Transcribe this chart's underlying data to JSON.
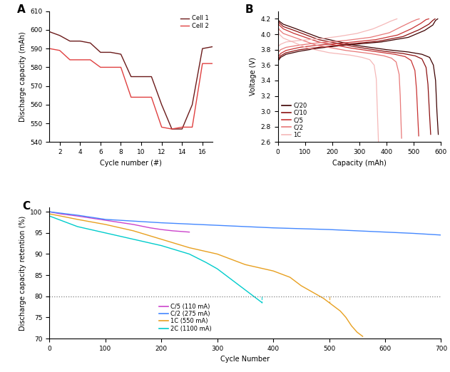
{
  "panel_A": {
    "label": "A",
    "ylabel": "Discharge capacity (mAh)",
    "xlabel": "Cycle number (#)",
    "ylim": [
      540,
      610
    ],
    "xlim": [
      1,
      17
    ],
    "xticks": [
      2,
      4,
      6,
      8,
      10,
      12,
      14,
      16
    ],
    "yticks": [
      540,
      550,
      560,
      570,
      580,
      590,
      600,
      610
    ],
    "cell1_color": "#6B1A1A",
    "cell2_color": "#E04040",
    "cell1_x": [
      1,
      2,
      3,
      4,
      5,
      6,
      7,
      8,
      9,
      10,
      11,
      12,
      13,
      14,
      15,
      16,
      17
    ],
    "cell1_y": [
      599,
      597,
      594,
      594,
      593,
      588,
      588,
      587,
      575,
      575,
      575,
      560,
      547,
      547,
      560,
      590,
      591
    ],
    "cell2_x": [
      1,
      2,
      3,
      4,
      5,
      6,
      7,
      8,
      9,
      10,
      11,
      12,
      13,
      14,
      15,
      16,
      17
    ],
    "cell2_y": [
      590,
      589,
      584,
      584,
      584,
      580,
      580,
      580,
      564,
      564,
      564,
      548,
      547,
      548,
      548,
      582,
      582
    ]
  },
  "panel_B": {
    "label": "B",
    "ylabel": "Voltage (V)",
    "xlabel": "Capacity (mAh)",
    "ylim": [
      2.6,
      4.3
    ],
    "xlim": [
      0,
      600
    ],
    "yticks": [
      2.6,
      2.8,
      3.0,
      3.2,
      3.4,
      3.6,
      3.8,
      4.0,
      4.2
    ],
    "xticks": [
      0,
      100,
      200,
      300,
      400,
      500,
      600
    ],
    "rates": [
      "C/20",
      "C/10",
      "C/5",
      "C/2",
      "1C"
    ],
    "colors": [
      "#3D0000",
      "#8B1010",
      "#C83232",
      "#E87878",
      "#F5B8B8"
    ],
    "charge_curves": {
      "C20": {
        "x": [
          0,
          10,
          30,
          80,
          150,
          250,
          380,
          480,
          540,
          570,
          580,
          588
        ],
        "y": [
          3.65,
          3.7,
          3.74,
          3.78,
          3.82,
          3.86,
          3.9,
          3.96,
          4.05,
          4.12,
          4.18,
          4.2
        ]
      },
      "C10": {
        "x": [
          0,
          10,
          30,
          80,
          150,
          250,
          370,
          460,
          520,
          555,
          570,
          578
        ],
        "y": [
          3.67,
          3.72,
          3.76,
          3.8,
          3.83,
          3.87,
          3.91,
          3.97,
          4.06,
          4.13,
          4.18,
          4.2
        ]
      },
      "C5": {
        "x": [
          0,
          10,
          30,
          80,
          150,
          250,
          360,
          440,
          490,
          525,
          545,
          555
        ],
        "y": [
          3.7,
          3.75,
          3.79,
          3.83,
          3.86,
          3.89,
          3.93,
          3.99,
          4.07,
          4.14,
          4.19,
          4.2
        ]
      },
      "C2": {
        "x": [
          0,
          10,
          30,
          80,
          150,
          250,
          340,
          410,
          455,
          490,
          510,
          520
        ],
        "y": [
          3.76,
          3.8,
          3.83,
          3.86,
          3.89,
          3.92,
          3.96,
          4.02,
          4.1,
          4.16,
          4.19,
          4.2
        ]
      },
      "C1": {
        "x": [
          0,
          10,
          30,
          80,
          150,
          220,
          290,
          350,
          390,
          415,
          430,
          438
        ],
        "y": [
          3.84,
          3.87,
          3.9,
          3.92,
          3.94,
          3.97,
          4.01,
          4.07,
          4.13,
          4.17,
          4.19,
          4.2
        ]
      }
    },
    "discharge_curves": {
      "C20": {
        "x": [
          0,
          5,
          20,
          60,
          150,
          280,
          400,
          480,
          530,
          558,
          572,
          580,
          585,
          590
        ],
        "y": [
          4.19,
          4.17,
          4.13,
          4.08,
          3.96,
          3.86,
          3.8,
          3.77,
          3.74,
          3.7,
          3.6,
          3.4,
          3.0,
          2.7
        ]
      },
      "C10": {
        "x": [
          0,
          5,
          20,
          60,
          150,
          280,
          390,
          460,
          505,
          530,
          545,
          552,
          558,
          562
        ],
        "y": [
          4.18,
          4.15,
          4.1,
          4.05,
          3.93,
          3.84,
          3.78,
          3.75,
          3.72,
          3.68,
          3.57,
          3.35,
          2.95,
          2.7
        ]
      },
      "C5": {
        "x": [
          0,
          5,
          20,
          60,
          150,
          270,
          370,
          430,
          468,
          490,
          504,
          510,
          515,
          518
        ],
        "y": [
          4.15,
          4.12,
          4.07,
          4.01,
          3.9,
          3.82,
          3.77,
          3.74,
          3.71,
          3.66,
          3.53,
          3.28,
          2.9,
          2.68
        ]
      },
      "C2": {
        "x": [
          0,
          5,
          20,
          60,
          140,
          250,
          340,
          390,
          418,
          435,
          446,
          450,
          453,
          455
        ],
        "y": [
          4.1,
          4.06,
          4.01,
          3.96,
          3.86,
          3.79,
          3.75,
          3.72,
          3.69,
          3.64,
          3.48,
          3.2,
          2.85,
          2.65
        ]
      },
      "C1": {
        "x": [
          0,
          5,
          20,
          55,
          110,
          190,
          265,
          310,
          338,
          354,
          362,
          365,
          368,
          370
        ],
        "y": [
          4.05,
          4.0,
          3.95,
          3.9,
          3.82,
          3.76,
          3.73,
          3.7,
          3.67,
          3.6,
          3.42,
          3.1,
          2.8,
          2.6
        ]
      }
    }
  },
  "panel_C": {
    "label": "C",
    "ylabel": "Discharge capacity retention (%)",
    "xlabel": "Cycle Number",
    "ylim": [
      70,
      101
    ],
    "xlim": [
      0,
      700
    ],
    "yticks": [
      70,
      75,
      80,
      85,
      90,
      95,
      100
    ],
    "xticks": [
      0,
      100,
      200,
      300,
      400,
      500,
      600,
      700
    ],
    "hline_y": 80,
    "vline_2C_x": 380,
    "vline_1C_x": 500,
    "series": {
      "C5_110mA": {
        "label": "C/5 (110 mA)",
        "color": "#CC44CC",
        "x": [
          0,
          20,
          50,
          100,
          150,
          180,
          200,
          220,
          240,
          250
        ],
        "y": [
          100,
          99.5,
          99.0,
          98.0,
          97.0,
          96.2,
          95.8,
          95.5,
          95.3,
          95.2
        ]
      },
      "C2_275mA": {
        "label": "C/2 (275 mA)",
        "color": "#4488FF",
        "x": [
          0,
          50,
          100,
          150,
          200,
          250,
          300,
          350,
          400,
          450,
          500,
          550,
          600,
          650,
          700
        ],
        "y": [
          100,
          99.2,
          98.2,
          97.8,
          97.4,
          97.1,
          96.8,
          96.5,
          96.2,
          96.0,
          95.8,
          95.5,
          95.2,
          94.9,
          94.5
        ]
      },
      "C1_550mA": {
        "label": "1C (550 mA)",
        "color": "#E8A020",
        "x": [
          0,
          20,
          50,
          100,
          150,
          200,
          250,
          300,
          350,
          400,
          430,
          450,
          470,
          490,
          500,
          510,
          520,
          530,
          540,
          550,
          555,
          560
        ],
        "y": [
          99.5,
          99.0,
          98.2,
          97.0,
          95.5,
          93.5,
          91.5,
          90.0,
          87.5,
          86.0,
          84.5,
          82.5,
          81.0,
          79.5,
          78.5,
          77.5,
          76.5,
          75.0,
          73.0,
          71.5,
          71.0,
          70.5
        ]
      },
      "C2_1100mA": {
        "label": "2C (1100 mA)",
        "color": "#00CCCC",
        "x": [
          0,
          20,
          50,
          100,
          150,
          200,
          250,
          280,
          300,
          320,
          340,
          355,
          365,
          375,
          380
        ],
        "y": [
          99.0,
          98.0,
          96.5,
          95.0,
          93.5,
          92.0,
          90.0,
          88.0,
          86.5,
          84.5,
          82.5,
          81.0,
          80.0,
          79.0,
          78.5
        ]
      }
    }
  }
}
